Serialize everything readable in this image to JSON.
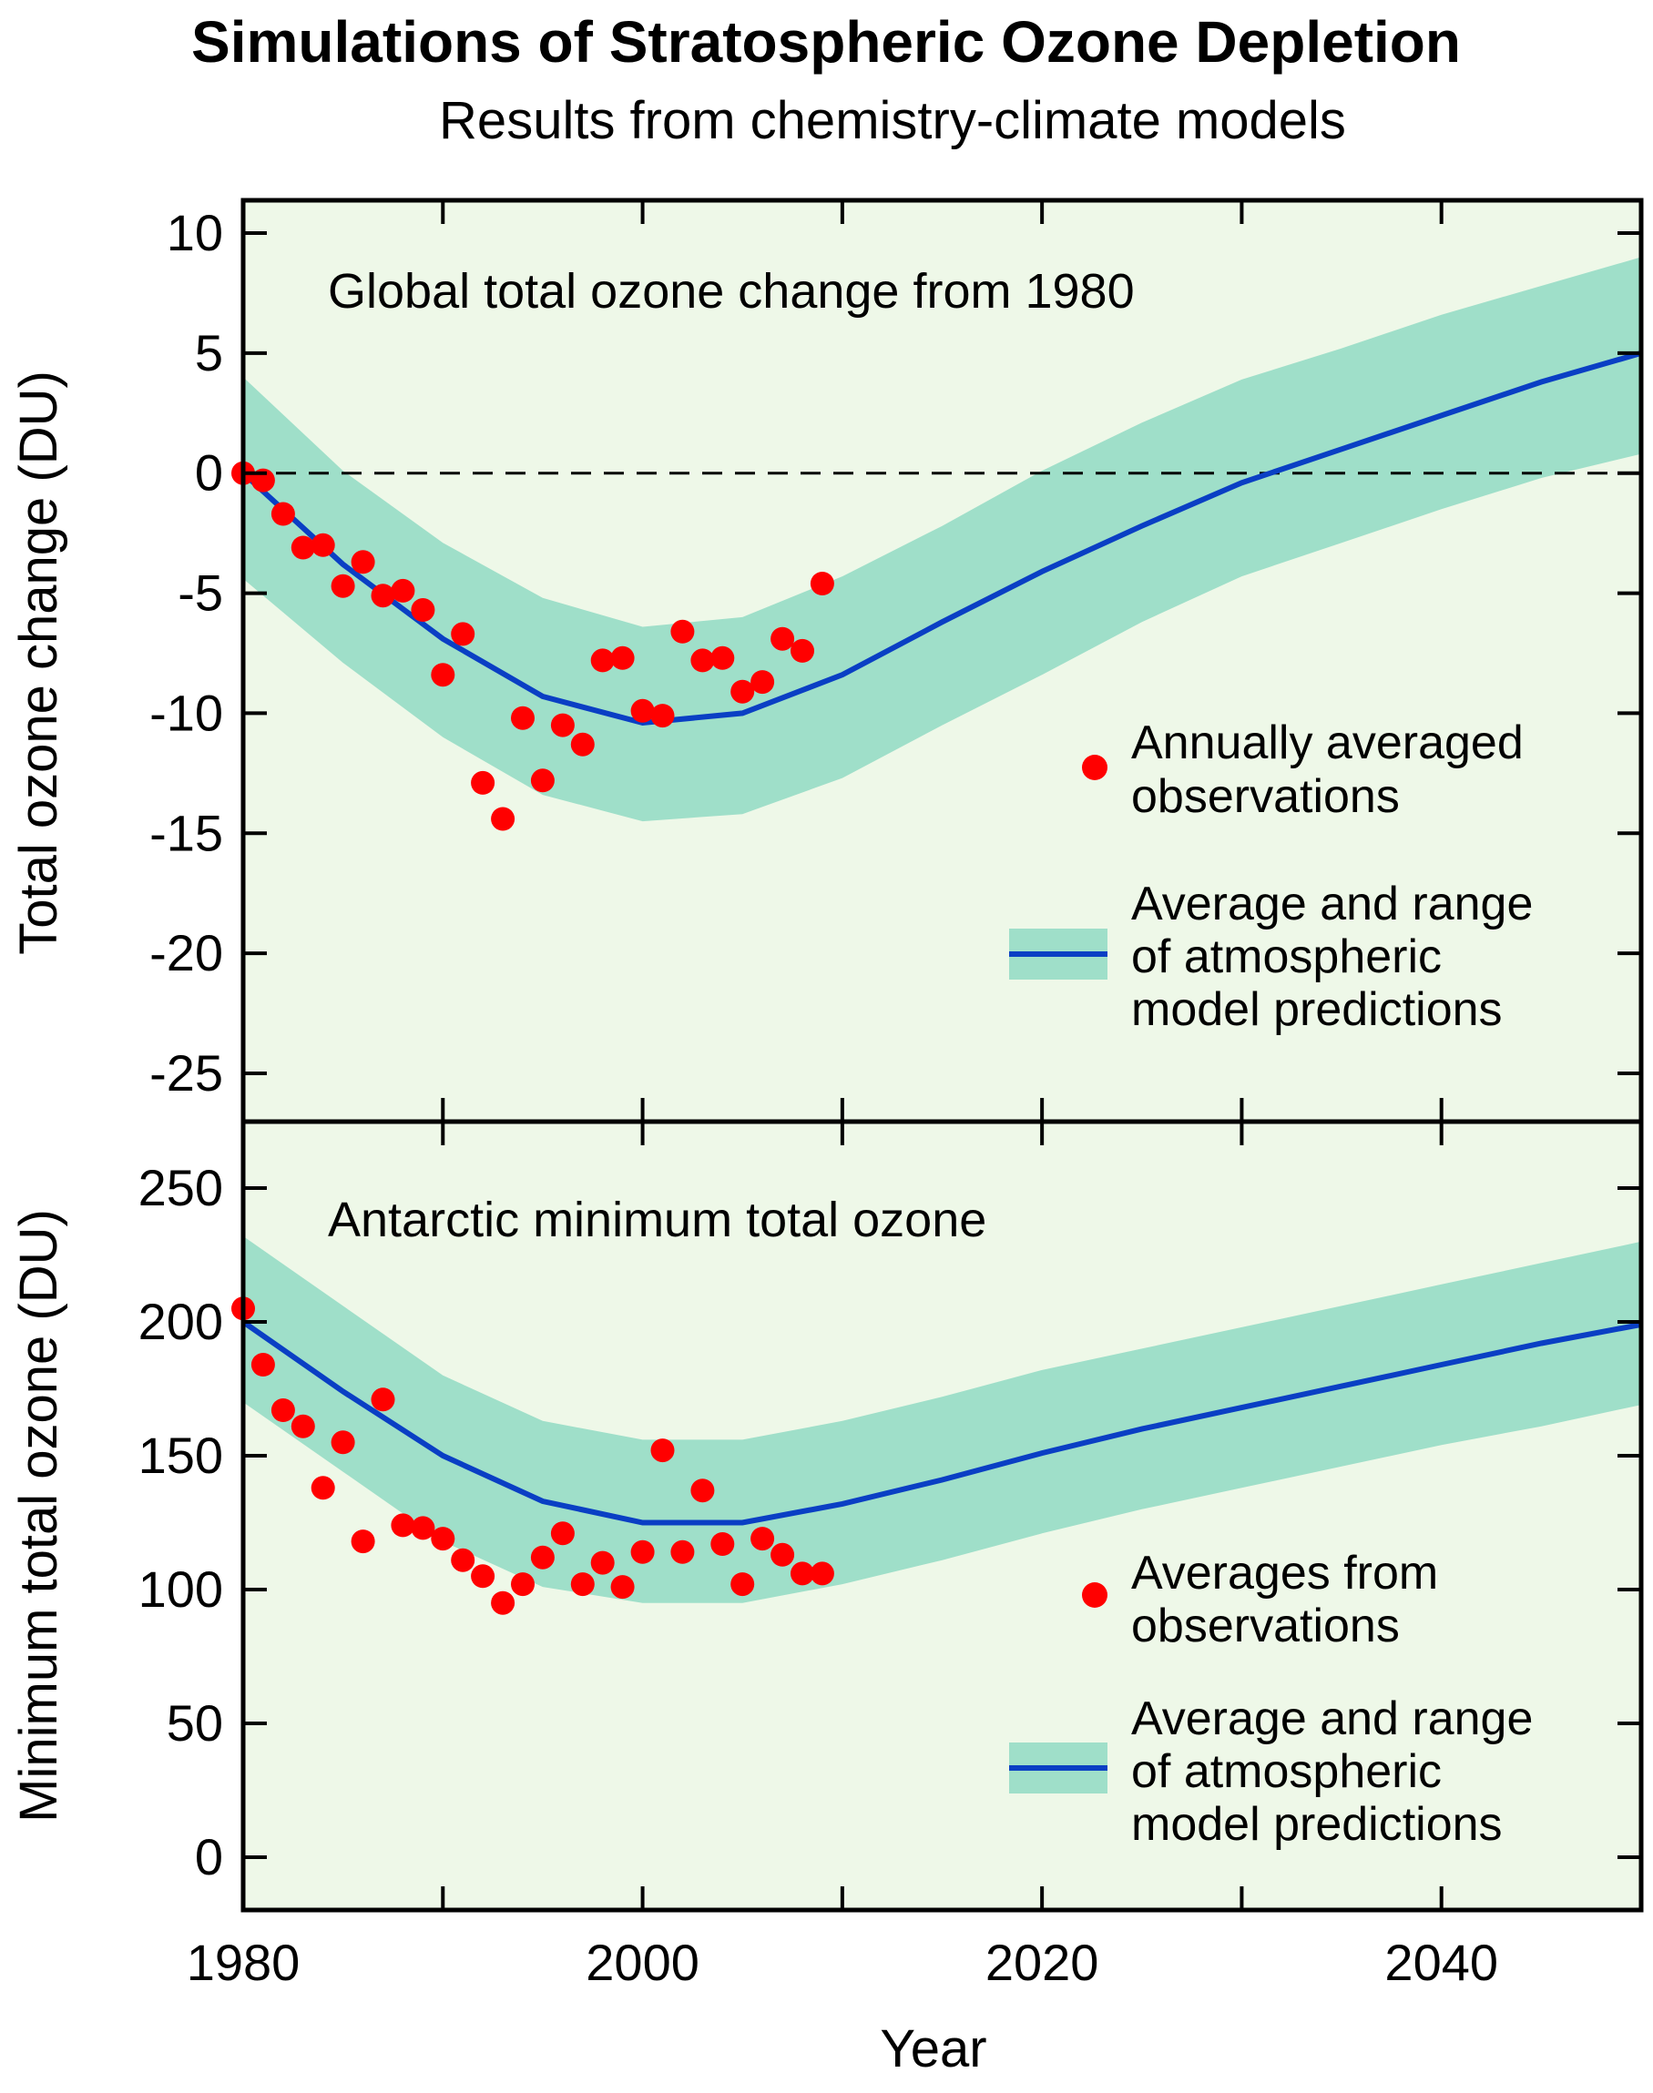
{
  "title": "Simulations of Stratospheric Ozone Depletion",
  "subtitle": "Results from chemistry-climate models",
  "xlabel": "Year",
  "colors": {
    "background": "#eef8e8",
    "band": "#9fdfc9",
    "line": "#0a3fc4",
    "observations": "#ff0000"
  },
  "chart_data": [
    {
      "type": "line",
      "panel_title": "Global total ozone change from 1980",
      "xlim": [
        1980,
        2050
      ],
      "x_ticks": [
        1980,
        2000,
        2020,
        2040
      ],
      "ylim": [
        -27,
        11
      ],
      "y_ticks": [
        10,
        5,
        0,
        -5,
        -10,
        -15,
        -20,
        -25
      ],
      "ylabel": "Total ozone change (DU)",
      "reference_line": 0,
      "series": [
        {
          "name": "Annually averaged observations",
          "kind": "scatter",
          "x": [
            1980,
            1981,
            1982,
            1983,
            1984,
            1985,
            1986,
            1987,
            1988,
            1989,
            1990,
            1991,
            1992,
            1993,
            1994,
            1995,
            1996,
            1997,
            1998,
            1999,
            2000,
            2001,
            2002,
            2003,
            2004,
            2005,
            2006,
            2007,
            2008,
            2009
          ],
          "y": [
            0.0,
            -0.3,
            -1.7,
            -3.1,
            -3.0,
            -4.7,
            -3.7,
            -5.1,
            -4.9,
            -5.7,
            -8.4,
            -6.7,
            -12.9,
            -14.4,
            -10.2,
            -12.8,
            -10.5,
            -11.3,
            -7.8,
            -7.7,
            -9.9,
            -10.1,
            -6.6,
            -7.8,
            -7.7,
            -9.1,
            -8.7,
            -6.9,
            -7.4,
            -4.6
          ]
        },
        {
          "name": "Average and range of atmospheric model predictions",
          "kind": "line-band",
          "x": [
            1980,
            1985,
            1990,
            1995,
            2000,
            2005,
            2010,
            2015,
            2020,
            2025,
            2030,
            2035,
            2040,
            2045,
            2050
          ],
          "y": [
            0.0,
            -3.8,
            -6.9,
            -9.3,
            -10.4,
            -10.0,
            -8.4,
            -6.2,
            -4.1,
            -2.2,
            -0.4,
            1.0,
            2.4,
            3.8,
            5.0
          ],
          "lower": [
            -4.4,
            -7.9,
            -11.0,
            -13.4,
            -14.5,
            -14.2,
            -12.7,
            -10.5,
            -8.4,
            -6.2,
            -4.3,
            -2.9,
            -1.5,
            -0.2,
            0.8
          ],
          "upper": [
            4.0,
            0.1,
            -2.9,
            -5.2,
            -6.4,
            -6.0,
            -4.3,
            -2.2,
            0.1,
            2.1,
            3.9,
            5.2,
            6.6,
            7.8,
            9.0
          ]
        }
      ],
      "legend": {
        "observations_label": "Annually averaged observations",
        "model_label": "Average and range of atmospheric model predictions"
      }
    },
    {
      "type": "line",
      "panel_title": "Antarctic minimum total ozone",
      "xlim": [
        1980,
        2050
      ],
      "x_ticks": [
        1980,
        2000,
        2020,
        2040
      ],
      "ylim": [
        -20,
        275
      ],
      "y_ticks": [
        250,
        200,
        150,
        100,
        50,
        0
      ],
      "ylabel": "Minimum total ozone (DU)",
      "series": [
        {
          "name": "Averages from observations",
          "kind": "scatter",
          "x": [
            1980,
            1981,
            1982,
            1983,
            1984,
            1985,
            1986,
            1987,
            1988,
            1989,
            1990,
            1991,
            1992,
            1993,
            1994,
            1995,
            1996,
            1997,
            1998,
            1999,
            2000,
            2001,
            2002,
            2003,
            2004,
            2005,
            2006,
            2007,
            2008,
            2009
          ],
          "y": [
            205,
            184,
            167,
            161,
            138,
            155,
            118,
            171,
            124,
            123,
            119,
            111,
            105,
            95,
            102,
            112,
            121,
            102,
            110,
            101,
            114,
            152,
            114,
            137,
            117,
            102,
            119,
            113,
            106,
            106
          ]
        },
        {
          "name": "Average and range of atmospheric model predictions",
          "kind": "line-band",
          "x": [
            1980,
            1985,
            1990,
            1995,
            2000,
            2005,
            2010,
            2015,
            2020,
            2025,
            2030,
            2035,
            2040,
            2045,
            2050
          ],
          "y": [
            200,
            174,
            150,
            133,
            125,
            125,
            132,
            141,
            151,
            160,
            168,
            176,
            184,
            192,
            199
          ],
          "lower": [
            170,
            144,
            118,
            101,
            95,
            95,
            102,
            111,
            121,
            130,
            138,
            146,
            154,
            161,
            169
          ],
          "upper": [
            232,
            206,
            180,
            163,
            156,
            156,
            163,
            172,
            182,
            190,
            198,
            206,
            214,
            222,
            230
          ]
        }
      ],
      "legend": {
        "observations_label": "Averages from observations",
        "model_label": "Average and range of atmospheric model predictions"
      }
    }
  ],
  "legend_text": {
    "top_obs_line1": "Annually averaged",
    "top_obs_line2": "observations",
    "top_model_line1": "Average and range",
    "top_model_line2": "of atmospheric",
    "top_model_line3": "model predictions",
    "bottom_obs_line1": "Averages from",
    "bottom_obs_line2": "observations",
    "bottom_model_line1": "Average and range",
    "bottom_model_line2": "of atmospheric",
    "bottom_model_line3": "model predictions"
  }
}
